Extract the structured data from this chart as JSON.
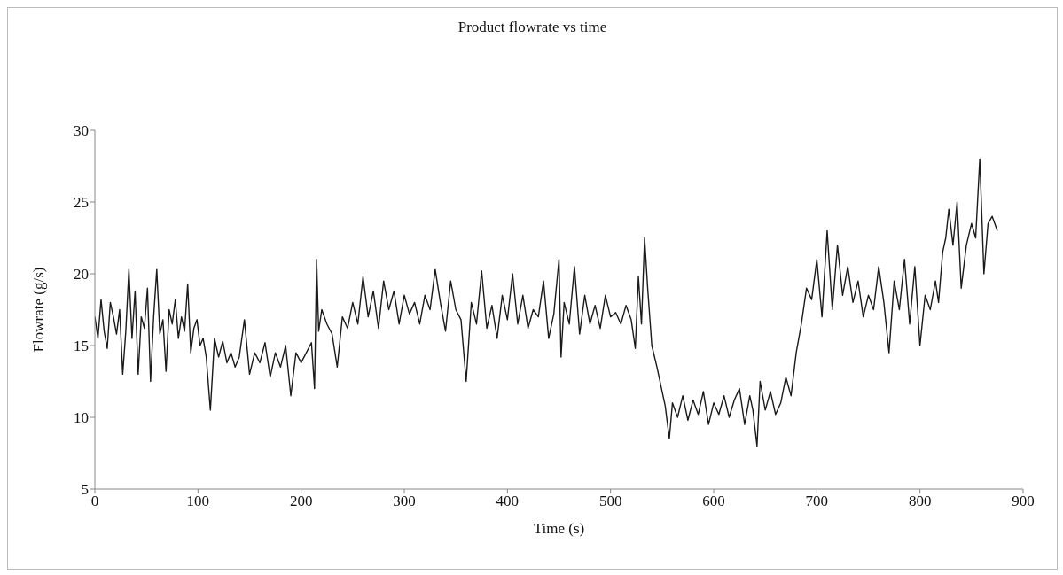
{
  "chart_data": {
    "type": "line",
    "title": "Product flowrate vs time",
    "xlabel": "Time (s)",
    "ylabel": "Flowrate (g/s)",
    "xlim": [
      0,
      900
    ],
    "ylim": [
      5,
      30
    ],
    "xticks": [
      0,
      100,
      200,
      300,
      400,
      500,
      600,
      700,
      800,
      900
    ],
    "yticks": [
      5,
      10,
      15,
      20,
      25,
      30
    ],
    "marker": "none",
    "line_style": "solid",
    "series": [
      {
        "color": "#1a1a1a",
        "x": [
          0,
          3,
          6,
          9,
          12,
          15,
          18,
          21,
          24,
          27,
          30,
          33,
          36,
          39,
          42,
          45,
          48,
          51,
          54,
          57,
          60,
          63,
          66,
          69,
          72,
          75,
          78,
          81,
          84,
          87,
          90,
          93,
          96,
          99,
          102,
          105,
          108,
          112,
          116,
          120,
          124,
          128,
          132,
          136,
          140,
          145,
          150,
          155,
          160,
          165,
          170,
          175,
          180,
          185,
          190,
          195,
          200,
          205,
          210,
          213,
          215,
          217,
          220,
          225,
          230,
          235,
          240,
          245,
          250,
          255,
          260,
          265,
          270,
          275,
          280,
          285,
          290,
          295,
          300,
          305,
          310,
          315,
          320,
          325,
          330,
          335,
          340,
          345,
          350,
          355,
          360,
          365,
          370,
          375,
          380,
          385,
          390,
          395,
          400,
          405,
          410,
          415,
          420,
          425,
          430,
          435,
          440,
          445,
          450,
          452,
          455,
          460,
          465,
          470,
          475,
          480,
          485,
          490,
          495,
          500,
          505,
          510,
          515,
          520,
          524,
          527,
          530,
          533,
          536,
          540,
          545,
          550,
          553,
          557,
          560,
          565,
          570,
          575,
          580,
          585,
          590,
          595,
          600,
          605,
          610,
          615,
          620,
          625,
          630,
          635,
          638,
          642,
          645,
          650,
          655,
          660,
          665,
          670,
          675,
          680,
          685,
          690,
          695,
          700,
          705,
          710,
          715,
          720,
          725,
          730,
          735,
          740,
          745,
          750,
          755,
          760,
          765,
          770,
          775,
          780,
          785,
          790,
          795,
          800,
          805,
          810,
          815,
          818,
          822,
          825,
          828,
          832,
          836,
          840,
          845,
          850,
          854,
          858,
          862,
          866,
          870,
          875
        ],
        "values": [
          17,
          15.5,
          18.2,
          16,
          14.8,
          18,
          17,
          15.8,
          17.5,
          13,
          16,
          20.3,
          15.5,
          18.8,
          13,
          17,
          16.2,
          19,
          12.5,
          17,
          20.3,
          15.8,
          16.8,
          13.2,
          17.5,
          16.5,
          18.2,
          15.5,
          17,
          16,
          19.3,
          14.5,
          16.2,
          16.8,
          15,
          15.5,
          14.2,
          10.5,
          15.5,
          14.2,
          15.3,
          13.8,
          14.5,
          13.5,
          14.2,
          16.8,
          13,
          14.5,
          13.8,
          15.2,
          12.8,
          14.5,
          13.5,
          15,
          11.5,
          14.5,
          13.8,
          14.5,
          15.2,
          12,
          21,
          16,
          17.5,
          16.5,
          15.8,
          13.5,
          17,
          16.2,
          18,
          16.5,
          19.8,
          17,
          18.8,
          16.2,
          19.5,
          17.5,
          18.8,
          16.5,
          18.5,
          17.2,
          18,
          16.5,
          18.5,
          17.5,
          20.3,
          18,
          16,
          19.5,
          17.5,
          16.8,
          12.5,
          18,
          16.5,
          20.2,
          16.2,
          17.8,
          15.5,
          18.5,
          16.8,
          20,
          16.5,
          18.5,
          16.2,
          17.5,
          17,
          19.5,
          15.5,
          17.2,
          21,
          14.2,
          18,
          16.5,
          20.5,
          15.8,
          18.5,
          16.5,
          17.8,
          16.2,
          18.5,
          17,
          17.3,
          16.5,
          17.8,
          16.8,
          14.8,
          19.8,
          16.5,
          22.5,
          19,
          15,
          13.5,
          11.8,
          10.8,
          8.5,
          11,
          10,
          11.5,
          9.8,
          11.2,
          10.2,
          11.8,
          9.5,
          11,
          10.2,
          11.5,
          10,
          11.2,
          12,
          9.5,
          11.5,
          10.5,
          8,
          12.5,
          10.5,
          11.8,
          10.2,
          11,
          12.8,
          11.5,
          14.5,
          16.5,
          19,
          18.2,
          21,
          17,
          23,
          17.5,
          22,
          18.5,
          20.5,
          18,
          19.5,
          17,
          18.5,
          17.5,
          20.5,
          18,
          14.5,
          19.5,
          17.5,
          21,
          16.5,
          20.5,
          15,
          18.5,
          17.5,
          19.5,
          18,
          21.5,
          22.5,
          24.5,
          22,
          25,
          19,
          22,
          23.5,
          22.5,
          28,
          20,
          23.5,
          24,
          23
        ]
      }
    ]
  }
}
